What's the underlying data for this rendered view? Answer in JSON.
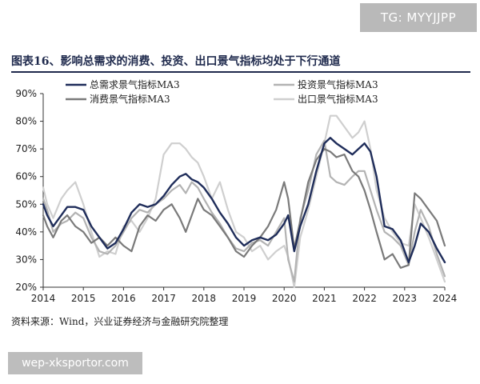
{
  "watermark_top": "TG: MYYJJPP",
  "watermark_bottom": "wep-xksportor.com",
  "title": "图表16、影响总需求的消费、投资、出口景气指标均处于下行通道",
  "source": "资料来源：Wind，兴业证券经济与金融研究院整理",
  "colors": {
    "total": "#1f2d5a",
    "invest": "#b3b3b3",
    "consume": "#7a7a7a",
    "export": "#cfcfcf",
    "axis": "#333333"
  },
  "chart_data": {
    "type": "line",
    "title": "",
    "xlabel": "",
    "ylabel": "",
    "xlim": [
      2014,
      2024
    ],
    "ylim": [
      20,
      90
    ],
    "x_ticks": [
      "2014",
      "2015",
      "2016",
      "2017",
      "2018",
      "2019",
      "2020",
      "2021",
      "2022",
      "2023",
      "2024"
    ],
    "y_ticks": [
      "20%",
      "30%",
      "40%",
      "50%",
      "60%",
      "70%",
      "80%",
      "90%"
    ],
    "legend_position": "top",
    "series": [
      {
        "name": "总需求景气指标MA3",
        "color": "#1f2d5a",
        "x": [
          2014.0,
          2014.1,
          2014.25,
          2014.45,
          2014.6,
          2014.8,
          2015.0,
          2015.2,
          2015.4,
          2015.6,
          2015.8,
          2016.0,
          2016.2,
          2016.4,
          2016.6,
          2016.8,
          2017.0,
          2017.2,
          2017.4,
          2017.55,
          2017.7,
          2017.85,
          2018.0,
          2018.2,
          2018.4,
          2018.6,
          2018.8,
          2019.0,
          2019.2,
          2019.4,
          2019.6,
          2019.8,
          2020.0,
          2020.1,
          2020.25,
          2020.4,
          2020.6,
          2020.8,
          2021.0,
          2021.15,
          2021.3,
          2021.5,
          2021.7,
          2021.85,
          2022.0,
          2022.15,
          2022.3,
          2022.5,
          2022.7,
          2022.9,
          2023.1,
          2023.25,
          2023.4,
          2023.6,
          2023.8,
          2024.0
        ],
        "values": [
          50,
          46,
          42,
          46,
          49,
          49,
          48,
          42,
          38,
          34,
          36,
          41,
          47,
          50,
          49,
          50,
          53,
          57,
          60,
          61,
          59,
          58,
          56,
          52,
          47,
          43,
          38,
          35,
          37,
          38,
          37,
          39,
          43,
          46,
          33,
          42,
          50,
          62,
          72,
          74,
          72,
          70,
          68,
          70,
          72,
          69,
          60,
          42,
          41,
          37,
          29,
          35,
          43,
          40,
          34,
          29
        ]
      },
      {
        "name": "投资景气指标MA3",
        "color": "#b3b3b3",
        "x": [
          2014.0,
          2014.1,
          2014.25,
          2014.45,
          2014.6,
          2014.8,
          2015.0,
          2015.2,
          2015.4,
          2015.6,
          2015.8,
          2016.0,
          2016.2,
          2016.4,
          2016.6,
          2016.8,
          2017.0,
          2017.2,
          2017.4,
          2017.55,
          2017.7,
          2017.85,
          2018.0,
          2018.2,
          2018.4,
          2018.6,
          2018.8,
          2019.0,
          2019.2,
          2019.4,
          2019.6,
          2019.8,
          2020.0,
          2020.1,
          2020.25,
          2020.4,
          2020.6,
          2020.8,
          2021.0,
          2021.15,
          2021.3,
          2021.5,
          2021.7,
          2021.85,
          2022.0,
          2022.15,
          2022.3,
          2022.5,
          2022.7,
          2022.9,
          2023.1,
          2023.25,
          2023.4,
          2023.6,
          2023.8,
          2024.0
        ],
        "values": [
          52,
          48,
          40,
          43,
          44,
          47,
          45,
          38,
          33,
          32,
          35,
          40,
          45,
          48,
          47,
          50,
          52,
          55,
          57,
          54,
          58,
          56,
          52,
          47,
          43,
          38,
          34,
          33,
          36,
          37,
          35,
          40,
          45,
          30,
          22,
          45,
          55,
          68,
          73,
          60,
          58,
          57,
          60,
          62,
          62,
          55,
          48,
          40,
          38,
          35,
          28,
          40,
          48,
          42,
          32,
          24
        ]
      },
      {
        "name": "消费景气指标MA3",
        "color": "#7a7a7a",
        "x": [
          2014.0,
          2014.1,
          2014.25,
          2014.45,
          2014.6,
          2014.8,
          2015.0,
          2015.2,
          2015.4,
          2015.6,
          2015.8,
          2016.0,
          2016.2,
          2016.4,
          2016.6,
          2016.8,
          2017.0,
          2017.2,
          2017.4,
          2017.55,
          2017.7,
          2017.85,
          2018.0,
          2018.2,
          2018.4,
          2018.6,
          2018.8,
          2019.0,
          2019.2,
          2019.4,
          2019.6,
          2019.8,
          2020.0,
          2020.1,
          2020.25,
          2020.4,
          2020.6,
          2020.8,
          2021.0,
          2021.15,
          2021.3,
          2021.5,
          2021.7,
          2021.85,
          2022.0,
          2022.15,
          2022.3,
          2022.5,
          2022.7,
          2022.9,
          2023.1,
          2023.25,
          2023.4,
          2023.6,
          2023.8,
          2024.0
        ],
        "values": [
          46,
          42,
          38,
          44,
          46,
          42,
          40,
          36,
          38,
          35,
          38,
          35,
          33,
          42,
          46,
          44,
          48,
          50,
          45,
          40,
          46,
          52,
          48,
          46,
          42,
          38,
          33,
          31,
          35,
          38,
          42,
          48,
          58,
          52,
          34,
          44,
          58,
          66,
          70,
          69,
          67,
          68,
          62,
          60,
          55,
          48,
          40,
          30,
          32,
          27,
          28,
          54,
          52,
          48,
          44,
          35
        ]
      },
      {
        "name": "出口景气指标MA3",
        "color": "#cfcfcf",
        "x": [
          2014.0,
          2014.1,
          2014.25,
          2014.45,
          2014.6,
          2014.8,
          2015.0,
          2015.2,
          2015.4,
          2015.6,
          2015.8,
          2016.0,
          2016.2,
          2016.4,
          2016.6,
          2016.8,
          2017.0,
          2017.2,
          2017.4,
          2017.55,
          2017.7,
          2017.85,
          2018.0,
          2018.2,
          2018.4,
          2018.6,
          2018.8,
          2019.0,
          2019.2,
          2019.4,
          2019.6,
          2019.8,
          2020.0,
          2020.1,
          2020.25,
          2020.4,
          2020.6,
          2020.8,
          2021.0,
          2021.15,
          2021.3,
          2021.5,
          2021.7,
          2021.85,
          2022.0,
          2022.15,
          2022.3,
          2022.5,
          2022.7,
          2022.9,
          2023.1,
          2023.25,
          2023.4,
          2023.6,
          2023.8,
          2024.0
        ],
        "values": [
          56,
          50,
          45,
          52,
          55,
          58,
          50,
          40,
          31,
          33,
          32,
          42,
          44,
          40,
          45,
          52,
          68,
          72,
          72,
          70,
          67,
          65,
          60,
          52,
          58,
          48,
          40,
          38,
          33,
          35,
          30,
          33,
          35,
          31,
          20,
          38,
          48,
          60,
          72,
          82,
          82,
          78,
          74,
          76,
          80,
          70,
          55,
          45,
          40,
          36,
          35,
          50,
          45,
          38,
          30,
          22
        ]
      }
    ]
  }
}
